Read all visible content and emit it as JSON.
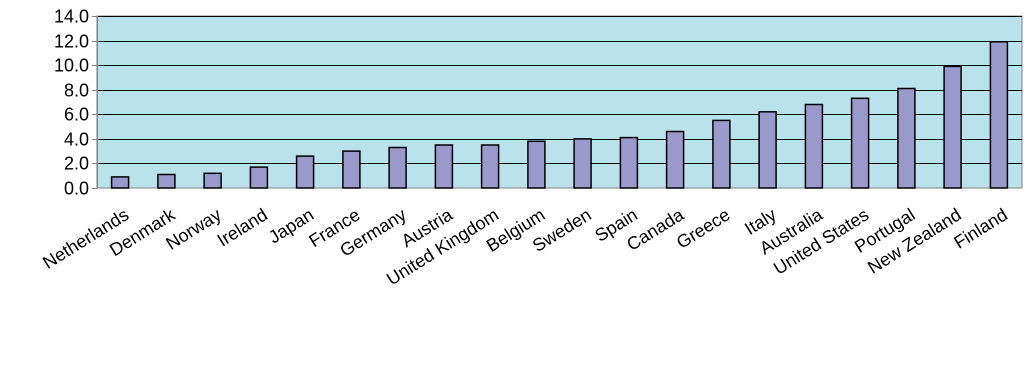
{
  "chart_data": {
    "type": "bar",
    "title": "",
    "xlabel": "",
    "ylabel": "",
    "ylim": [
      0,
      14
    ],
    "yticks": [
      "0.0",
      "2.0",
      "4.0",
      "6.0",
      "8.0",
      "10.0",
      "12.0",
      "14.0"
    ],
    "grid": "horizontal",
    "categories": [
      "Netherlands",
      "Denmark",
      "Norway",
      "Ireland",
      "Japan",
      "France",
      "Germany",
      "Austria",
      "United Kingdom",
      "Belgium",
      "Sweden",
      "Spain",
      "Canada",
      "Greece",
      "Italy",
      "Australia",
      "United States",
      "Portugal",
      "New Zealand",
      "Finland"
    ],
    "values": [
      0.9,
      1.1,
      1.2,
      1.7,
      2.6,
      3.0,
      3.3,
      3.5,
      3.5,
      3.8,
      4.0,
      4.1,
      4.6,
      5.5,
      6.2,
      6.8,
      7.3,
      8.1,
      9.9,
      11.9
    ],
    "colors": {
      "plot_background": "#b9e2ec",
      "bar_fill": "#9999cc",
      "bar_stroke": "#000000",
      "gridline": "#000000",
      "axis": "#808080"
    }
  }
}
